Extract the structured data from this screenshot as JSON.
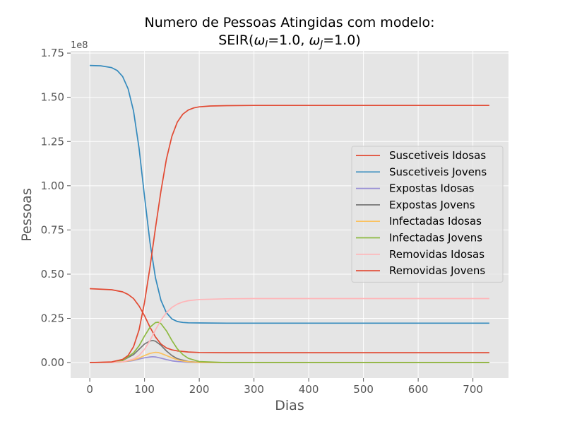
{
  "chart_data": {
    "type": "line",
    "title_line1": "Numero de Pessoas Atingidas com modelo:",
    "title_line2_prefix": "SEIR(",
    "title_omega_i": "ω",
    "title_sub_i": "I",
    "title_eq_i": "=1.0, ",
    "title_omega_j": "ω",
    "title_sub_j": "J",
    "title_eq_j": "=1.0)",
    "xlabel": "Dias",
    "ylabel": "Pessoas",
    "y_offset_label": "1e8",
    "xlim": [
      -35,
      765
    ],
    "ylim": [
      -0.0875,
      1.7625
    ],
    "x_ticks": [
      0,
      100,
      200,
      300,
      400,
      500,
      600,
      700
    ],
    "x_tick_labels": [
      "0",
      "100",
      "200",
      "300",
      "400",
      "500",
      "600",
      "700"
    ],
    "y_ticks": [
      0.0,
      0.25,
      0.5,
      0.75,
      1.0,
      1.25,
      1.5,
      1.75
    ],
    "y_tick_labels": [
      "0.00",
      "0.25",
      "0.50",
      "0.75",
      "1.00",
      "1.25",
      "1.50",
      "1.75"
    ],
    "grid": true,
    "legend_position": "center-right",
    "series": [
      {
        "name": "Suscetiveis Idosas",
        "color": "#E24A33",
        "x": [
          0,
          40,
          60,
          70,
          80,
          90,
          100,
          110,
          120,
          130,
          140,
          150,
          160,
          180,
          200,
          250,
          300,
          730
        ],
        "y": [
          0.418,
          0.412,
          0.4,
          0.385,
          0.362,
          0.32,
          0.265,
          0.2,
          0.145,
          0.105,
          0.083,
          0.072,
          0.066,
          0.06,
          0.057,
          0.056,
          0.056,
          0.056
        ]
      },
      {
        "name": "Suscetiveis Jovens",
        "color": "#348ABD",
        "x": [
          0,
          20,
          40,
          50,
          60,
          70,
          80,
          90,
          100,
          110,
          120,
          130,
          140,
          150,
          160,
          170,
          180,
          200,
          250,
          300,
          730
        ],
        "y": [
          1.68,
          1.678,
          1.668,
          1.652,
          1.618,
          1.548,
          1.422,
          1.212,
          0.94,
          0.678,
          0.48,
          0.352,
          0.282,
          0.247,
          0.232,
          0.227,
          0.225,
          0.224,
          0.223,
          0.223,
          0.223
        ]
      },
      {
        "name": "Expostas Idosas",
        "color": "#988ED5",
        "x": [
          0,
          40,
          60,
          80,
          90,
          100,
          110,
          115,
          120,
          130,
          140,
          150,
          160,
          180,
          200,
          250,
          730
        ],
        "y": [
          0,
          0.001,
          0.004,
          0.012,
          0.02,
          0.027,
          0.032,
          0.033,
          0.032,
          0.025,
          0.017,
          0.01,
          0.006,
          0.002,
          0.0005,
          0,
          0
        ]
      },
      {
        "name": "Expostas Jovens",
        "color": "#777777",
        "x": [
          0,
          40,
          60,
          80,
          90,
          100,
          110,
          115,
          120,
          130,
          140,
          150,
          160,
          180,
          200,
          250,
          730
        ],
        "y": [
          0,
          0.002,
          0.012,
          0.045,
          0.075,
          0.105,
          0.122,
          0.125,
          0.121,
          0.098,
          0.066,
          0.04,
          0.022,
          0.006,
          0.002,
          0,
          0
        ]
      },
      {
        "name": "Infectadas Idosas",
        "color": "#FBC15E",
        "x": [
          0,
          40,
          60,
          80,
          90,
          100,
          110,
          120,
          125,
          130,
          140,
          150,
          160,
          170,
          180,
          200,
          250,
          730
        ],
        "y": [
          0,
          0.001,
          0.004,
          0.015,
          0.026,
          0.04,
          0.052,
          0.058,
          0.057,
          0.052,
          0.04,
          0.027,
          0.016,
          0.009,
          0.005,
          0.001,
          0,
          0
        ]
      },
      {
        "name": "Infectadas Jovens",
        "color": "#8EBA42",
        "x": [
          0,
          40,
          60,
          80,
          90,
          100,
          110,
          120,
          125,
          130,
          140,
          150,
          160,
          170,
          180,
          200,
          250,
          730
        ],
        "y": [
          0,
          0.002,
          0.012,
          0.055,
          0.095,
          0.15,
          0.2,
          0.226,
          0.228,
          0.22,
          0.18,
          0.125,
          0.078,
          0.045,
          0.024,
          0.006,
          0,
          0
        ]
      },
      {
        "name": "Removidas Idosas",
        "color": "#FFB5B8",
        "x": [
          0,
          40,
          60,
          80,
          90,
          100,
          110,
          120,
          130,
          140,
          150,
          160,
          170,
          180,
          200,
          250,
          300,
          730
        ],
        "y": [
          0,
          0.001,
          0.005,
          0.02,
          0.04,
          0.075,
          0.125,
          0.185,
          0.24,
          0.282,
          0.312,
          0.331,
          0.343,
          0.35,
          0.357,
          0.361,
          0.362,
          0.362
        ]
      },
      {
        "name": "Removidas Jovens",
        "color": "#E24A33",
        "x": [
          0,
          40,
          60,
          70,
          80,
          90,
          100,
          110,
          120,
          130,
          140,
          150,
          160,
          170,
          180,
          190,
          200,
          220,
          250,
          300,
          730
        ],
        "y": [
          0,
          0.004,
          0.018,
          0.04,
          0.09,
          0.185,
          0.34,
          0.54,
          0.76,
          0.97,
          1.15,
          1.28,
          1.36,
          1.405,
          1.428,
          1.44,
          1.446,
          1.451,
          1.453,
          1.454,
          1.454
        ]
      }
    ]
  }
}
